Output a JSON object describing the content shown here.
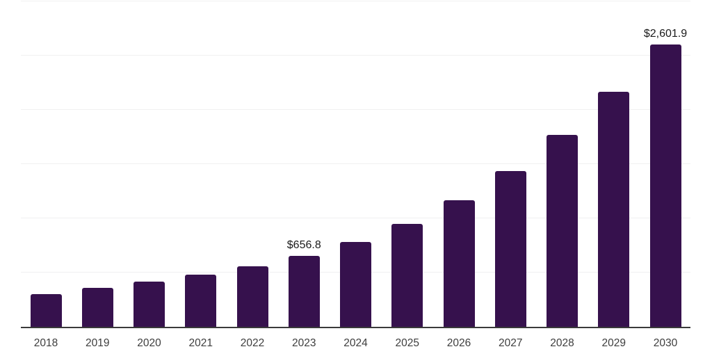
{
  "page": {
    "background": "#ffffff"
  },
  "chart_data": {
    "type": "bar",
    "title": "",
    "xlabel": "",
    "ylabel": "",
    "categories": [
      "2018",
      "2019",
      "2020",
      "2021",
      "2022",
      "2023",
      "2024",
      "2025",
      "2026",
      "2027",
      "2028",
      "2029",
      "2030"
    ],
    "values": [
      300,
      362,
      415,
      478,
      556,
      656.8,
      781,
      949,
      1167,
      1437,
      1772,
      2164,
      2601.9
    ],
    "data_labels": [
      {
        "category": "2023",
        "text": "$656.8"
      },
      {
        "category": "2030",
        "text": "$2,601.9"
      }
    ],
    "ylim": [
      0,
      3000
    ],
    "gridline_step": 500,
    "grid": "horizontal",
    "legend_position": "none",
    "y_axis_tick_labels_visible": false,
    "colors": {
      "bar": "#36114d",
      "axis_line": "#3a3a3a",
      "gridline": "#f0f0f1",
      "tick_label": "#3d3d3d",
      "data_label": "#1a1a1a",
      "background": "#ffffff"
    }
  }
}
